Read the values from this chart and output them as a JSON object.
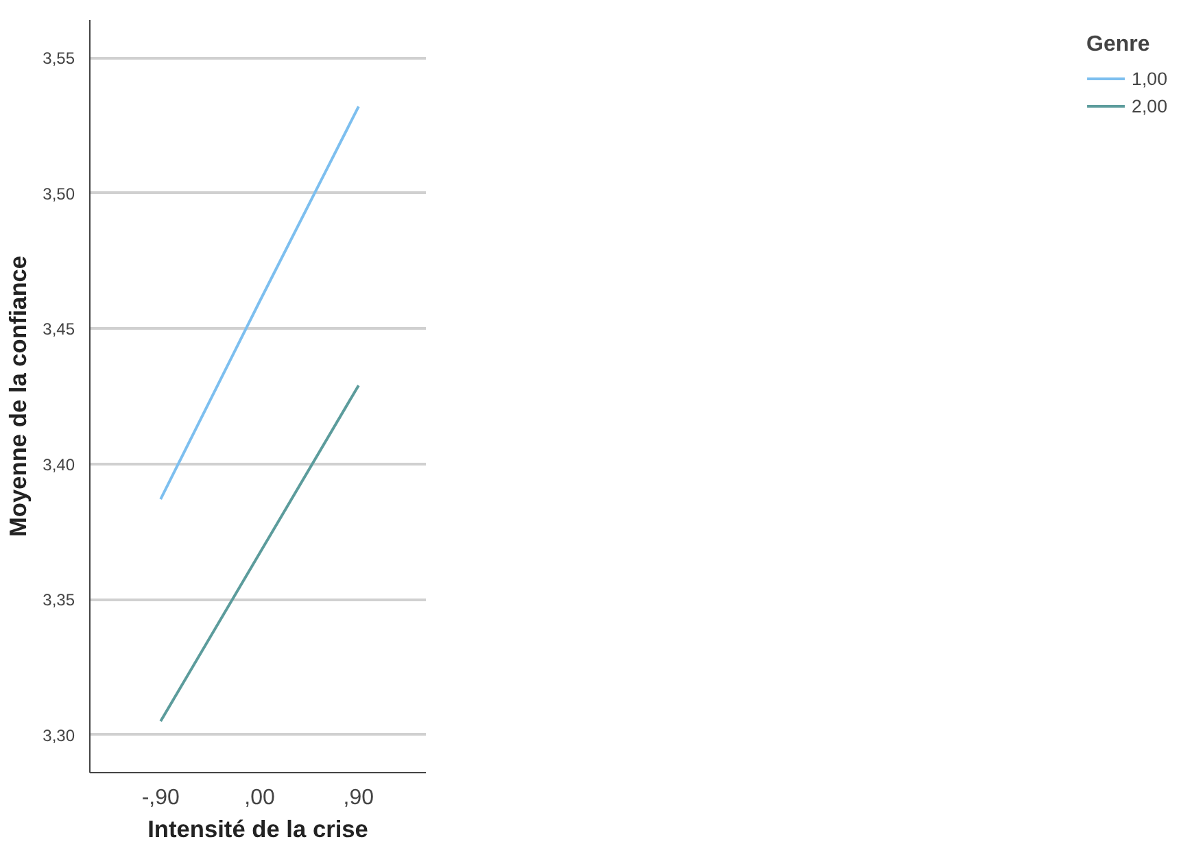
{
  "chart_data": {
    "type": "line",
    "xlabel": "Intensité de la crise",
    "ylabel": "Moyenne de la confiance",
    "legend_title": "Genre",
    "categories": [
      "-,90",
      ",00",
      ",90"
    ],
    "series": [
      {
        "name": "1,00",
        "color": "#7dbfef",
        "values": [
          3.387,
          3.46,
          3.532
        ]
      },
      {
        "name": "2,00",
        "color": "#5c9c9c",
        "values": [
          3.305,
          3.367,
          3.429
        ]
      }
    ],
    "ylim": [
      3.286,
      3.564
    ],
    "yticks": [
      {
        "value": 3.3,
        "label": "3,30"
      },
      {
        "value": 3.35,
        "label": "3,35"
      },
      {
        "value": 3.4,
        "label": "3,40"
      },
      {
        "value": 3.45,
        "label": "3,45"
      },
      {
        "value": 3.5,
        "label": "3,50"
      },
      {
        "value": 3.55,
        "label": "3,55"
      }
    ],
    "grid": "y",
    "legend": "top right",
    "marker": "none",
    "line_style": "solid"
  }
}
